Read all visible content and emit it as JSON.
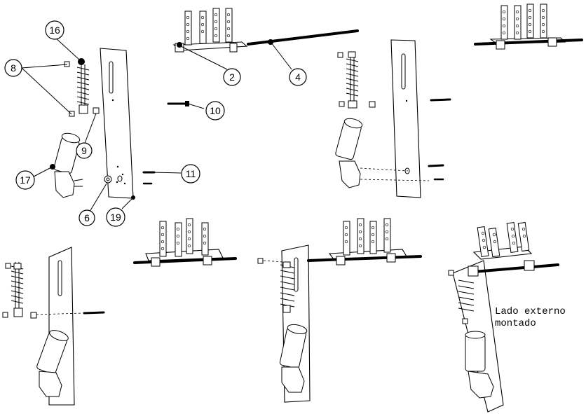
{
  "callouts": {
    "c16": "16",
    "c8": "8",
    "c9": "9",
    "c17": "17",
    "c6": "6",
    "c19": "19",
    "c2": "2",
    "c4": "4",
    "c10": "10",
    "c11": "11"
  },
  "note": {
    "line1": "Lado externo",
    "line2": "montado"
  }
}
